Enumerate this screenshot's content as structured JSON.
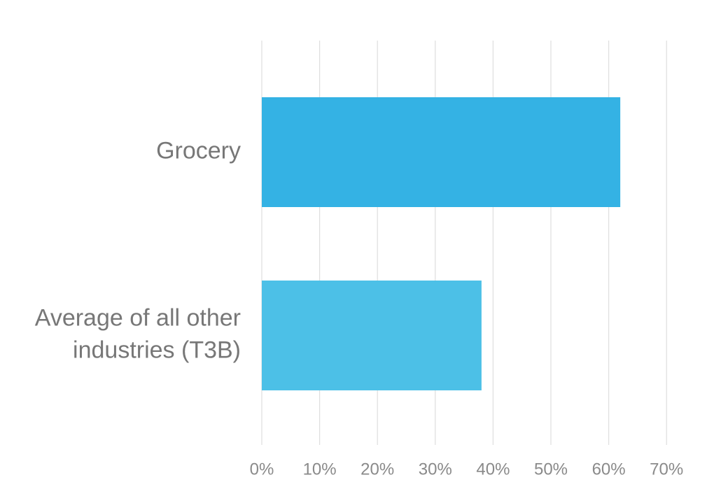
{
  "chart_data": {
    "type": "bar",
    "orientation": "horizontal",
    "title": "",
    "xlabel": "",
    "ylabel": "",
    "categories": [
      [
        "Grocery"
      ],
      [
        "Average of all other",
        "industries (T3B)"
      ]
    ],
    "values": [
      62,
      38
    ],
    "bar_colors": [
      "#34b2e4",
      "#4cc0e7"
    ],
    "xlim": [
      0,
      70
    ],
    "ticks": [
      0,
      10,
      20,
      30,
      40,
      50,
      60,
      70
    ],
    "tick_labels": [
      "0%",
      "10%",
      "20%",
      "30%",
      "40%",
      "50%",
      "60%",
      "70%"
    ],
    "grid": true,
    "legend": "none"
  }
}
